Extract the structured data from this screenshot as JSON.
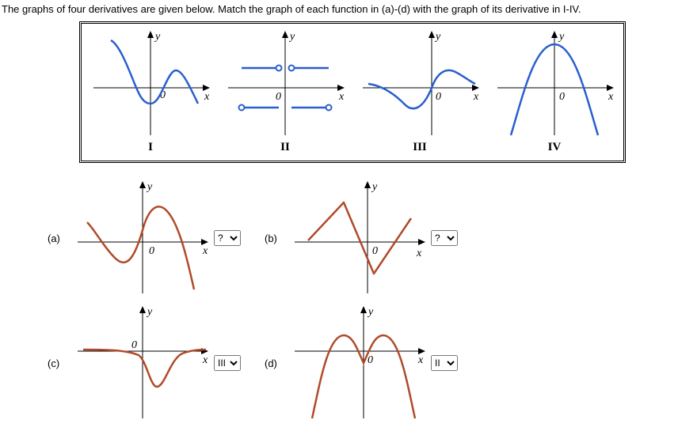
{
  "prompt_text": "The graphs of four derivatives are given below. Match the graph of each function in (a)-(d) with the graph of its derivative in I-IV.",
  "colors": {
    "deriv_curve": "#2a5fcf",
    "func_curve": "#b04a2a",
    "axis": "#000000",
    "background": "#ffffff"
  },
  "axis_labels": {
    "x": "x",
    "y": "y",
    "origin": "0"
  },
  "derivatives": [
    {
      "id": "I",
      "label": "I"
    },
    {
      "id": "II",
      "label": "II"
    },
    {
      "id": "III",
      "label": "III"
    },
    {
      "id": "IV",
      "label": "IV"
    }
  ],
  "functions": [
    {
      "id": "a",
      "label": "(a)",
      "selected": "?"
    },
    {
      "id": "b",
      "label": "(b)",
      "selected": "?"
    },
    {
      "id": "c",
      "label": "(c)",
      "selected": "III"
    },
    {
      "id": "d",
      "label": "(d)",
      "selected": "II"
    }
  ],
  "select_options": [
    "?",
    "I",
    "II",
    "III",
    "IV"
  ],
  "graph_box": {
    "width": 160,
    "height": 140
  },
  "typography": {
    "prompt_fontsize": 13,
    "label_font": "Times New Roman",
    "label_fontsize": 15
  }
}
